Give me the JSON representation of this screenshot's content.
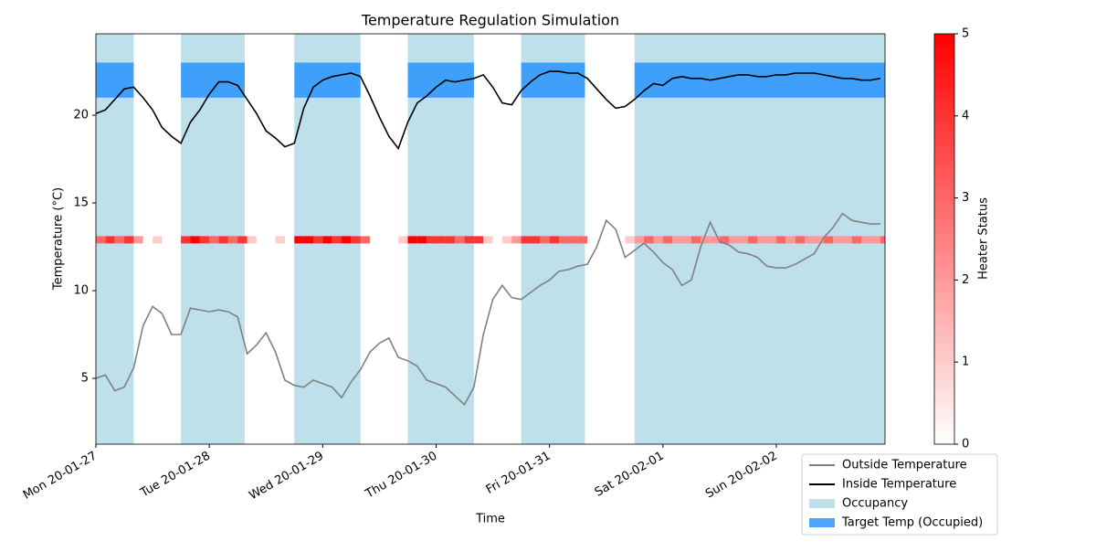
{
  "chart_data": {
    "type": "line",
    "title": "Temperature Regulation Simulation",
    "xlabel": "Time",
    "ylabel": "Temperature (°C)",
    "x": [
      0,
      2,
      4,
      6,
      8,
      10,
      12,
      14,
      16,
      18,
      20,
      22,
      24,
      26,
      28,
      30,
      32,
      34,
      36,
      38,
      40,
      42,
      44,
      46,
      48,
      50,
      52,
      54,
      56,
      58,
      60,
      62,
      64,
      66,
      68,
      70,
      72,
      74,
      76,
      78,
      80,
      82,
      84,
      86,
      88,
      90,
      92,
      94,
      96,
      98,
      100,
      102,
      104,
      106,
      108,
      110,
      112,
      114,
      116,
      118,
      120,
      122,
      124,
      126,
      128,
      130,
      132,
      134,
      136,
      138,
      140,
      142,
      144,
      146,
      148,
      150,
      152,
      154,
      156,
      158,
      160,
      162,
      164,
      166
    ],
    "xlim": [
      0,
      167
    ],
    "xticks": [
      {
        "value": 0,
        "label": "Mon 20-01-27"
      },
      {
        "value": 24,
        "label": "Tue 20-01-28"
      },
      {
        "value": 48,
        "label": "Wed 20-01-29"
      },
      {
        "value": 72,
        "label": "Thu 20-01-30"
      },
      {
        "value": 96,
        "label": "Fri 20-01-31"
      },
      {
        "value": 120,
        "label": "Sat 20-02-01"
      },
      {
        "value": 144,
        "label": "Sun 20-02-02"
      }
    ],
    "ylim": [
      1.25,
      24.64
    ],
    "yticks": [
      5,
      10,
      15,
      20
    ],
    "series": [
      {
        "name": "Outside Temperature",
        "color": "#808080",
        "values": [
          5.0,
          5.2,
          4.3,
          4.5,
          5.6,
          8.0,
          9.1,
          8.7,
          7.5,
          7.5,
          9.0,
          8.9,
          8.8,
          8.9,
          8.8,
          8.5,
          6.4,
          6.9,
          7.6,
          6.5,
          4.9,
          4.6,
          4.5,
          4.9,
          4.7,
          4.5,
          3.9,
          4.8,
          5.5,
          6.5,
          7.0,
          7.3,
          6.2,
          6.0,
          5.7,
          4.9,
          4.7,
          4.5,
          4.0,
          3.5,
          4.5,
          7.5,
          9.5,
          10.3,
          9.6,
          9.5,
          9.9,
          10.3,
          10.6,
          11.1,
          11.2,
          11.4,
          11.5,
          12.5,
          14.0,
          13.5,
          11.9,
          12.3,
          12.7,
          12.2,
          11.6,
          11.2,
          10.3,
          10.6,
          12.5,
          13.9,
          12.8,
          12.6,
          12.2,
          12.1,
          11.9,
          11.4,
          11.3,
          11.3,
          11.5,
          11.8,
          12.1,
          13.0,
          13.6,
          14.4,
          14.0,
          13.9,
          13.8,
          13.8
        ]
      },
      {
        "name": "Inside Temperature",
        "color": "#000000",
        "values": [
          20.1,
          20.3,
          20.9,
          21.5,
          21.6,
          21.0,
          20.3,
          19.3,
          18.8,
          18.4,
          19.6,
          20.3,
          21.2,
          21.9,
          21.9,
          21.7,
          20.9,
          20.1,
          19.1,
          18.7,
          18.2,
          18.4,
          20.4,
          21.6,
          22.0,
          22.2,
          22.3,
          22.4,
          22.2,
          21.1,
          19.9,
          18.8,
          18.1,
          19.6,
          20.7,
          21.1,
          21.6,
          22.0,
          21.9,
          22.0,
          22.1,
          22.3,
          21.6,
          20.7,
          20.6,
          21.4,
          21.9,
          22.3,
          22.5,
          22.5,
          22.4,
          22.4,
          22.1,
          21.5,
          20.9,
          20.4,
          20.5,
          20.9,
          21.4,
          21.8,
          21.7,
          22.1,
          22.2,
          22.1,
          22.1,
          22.0,
          22.1,
          22.2,
          22.3,
          22.3,
          22.2,
          22.2,
          22.3,
          22.3,
          22.4,
          22.4,
          22.4,
          22.3,
          22.2,
          22.1,
          22.1,
          22.0,
          22.0,
          22.1
        ]
      }
    ],
    "occupancy": {
      "name": "Occupancy",
      "color": "#add8e6",
      "spans": [
        [
          0,
          8
        ],
        [
          18,
          31.5
        ],
        [
          42,
          56
        ],
        [
          66,
          80
        ],
        [
          90,
          103.5
        ],
        [
          114,
          167
        ]
      ]
    },
    "target": {
      "name": "Target Temp (Occupied)",
      "color": "#1e90ff",
      "range": [
        21,
        23
      ]
    },
    "heater": {
      "name": "Heater Status",
      "y": 12.9,
      "values": [
        3,
        4,
        3,
        4,
        2,
        0,
        1,
        0,
        0,
        4,
        5,
        4,
        3,
        4,
        3,
        4,
        1,
        0,
        0,
        1,
        0,
        5,
        5,
        4,
        5,
        4,
        5,
        4,
        3,
        0,
        0,
        0,
        1,
        5,
        5,
        4,
        4,
        4,
        3,
        4,
        4,
        1,
        0,
        1,
        2,
        4,
        4,
        3,
        4,
        3,
        3,
        3,
        0,
        0,
        0,
        0,
        1,
        2,
        3,
        2,
        3,
        2,
        2,
        3,
        2,
        2,
        3,
        2,
        2,
        3,
        2,
        2,
        3,
        2,
        3,
        2,
        2,
        3,
        2,
        2,
        3,
        2,
        2,
        3
      ],
      "clim": [
        0,
        5
      ],
      "cticks": [
        0,
        1,
        2,
        3,
        4,
        5
      ]
    }
  }
}
